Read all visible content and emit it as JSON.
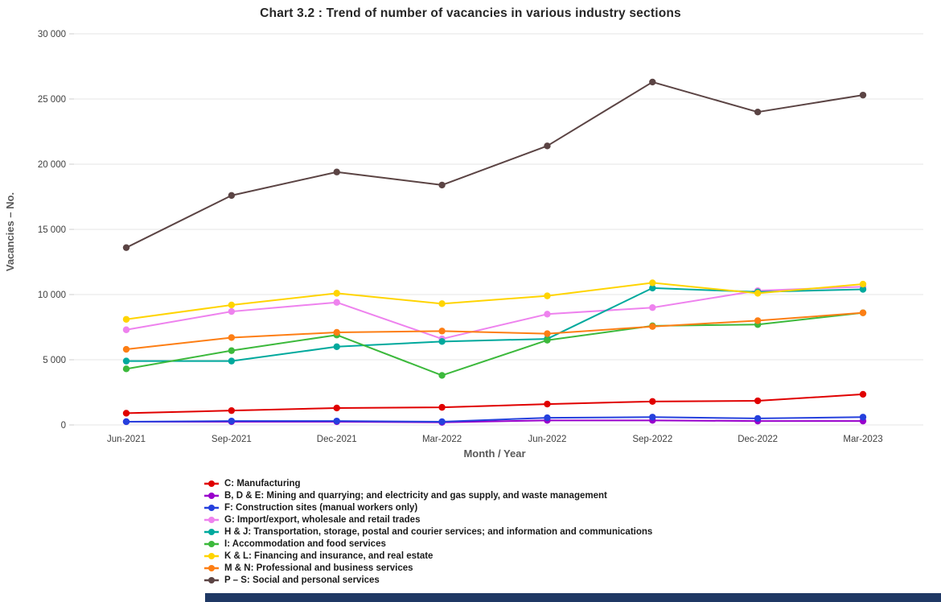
{
  "page": {
    "title": "Chart 3.2 : Trend of number of vacancies in various industry sections"
  },
  "chart_data": {
    "type": "line",
    "title": "Chart 3.2 : Trend of number of vacancies in various industry sections",
    "xlabel": "Month / Year",
    "ylabel": "Vacancies – No.",
    "ylim": [
      0,
      30000
    ],
    "y_ticks": [
      0,
      5000,
      10000,
      15000,
      20000,
      25000,
      30000
    ],
    "y_tick_labels": [
      "0",
      "5 000",
      "10 000",
      "15 000",
      "20 000",
      "25 000",
      "30 000"
    ],
    "grid": "horizontal",
    "legend_position": "bottom-left",
    "categories": [
      "Jun-2021",
      "Sep-2021",
      "Dec-2021",
      "Mar-2022",
      "Jun-2022",
      "Sep-2022",
      "Dec-2022",
      "Mar-2023"
    ],
    "series": [
      {
        "name": "C: Manufacturing",
        "color": "#e00000",
        "values": [
          900,
          1100,
          1300,
          1350,
          1600,
          1800,
          1850,
          2350
        ]
      },
      {
        "name": "B, D & E: Mining and quarrying; and electricity and gas supply, and waste management",
        "color": "#9900cc",
        "values": [
          250,
          250,
          250,
          200,
          350,
          350,
          300,
          300
        ]
      },
      {
        "name": "F: Construction sites (manual workers only)",
        "color": "#2540dd",
        "values": [
          250,
          300,
          300,
          250,
          550,
          600,
          500,
          600
        ]
      },
      {
        "name": "G: Import/export, wholesale and retail trades",
        "color": "#ee82ee",
        "values": [
          7300,
          8700,
          9400,
          6600,
          8500,
          9000,
          10300,
          10600
        ]
      },
      {
        "name": "H & J: Transportation, storage, postal and courier services; and information and communications",
        "color": "#00a99d",
        "values": [
          4900,
          4900,
          6000,
          6400,
          6600,
          10500,
          10200,
          10400
        ]
      },
      {
        "name": "I: Accommodation and food services",
        "color": "#3cb93c",
        "values": [
          4300,
          5700,
          6900,
          3800,
          6500,
          7600,
          7700,
          8600
        ]
      },
      {
        "name": "K & L: Financing and insurance, and real estate",
        "color": "#ffd400",
        "values": [
          8100,
          9200,
          10100,
          9300,
          9900,
          10900,
          10100,
          10800
        ]
      },
      {
        "name": "M & N: Professional and business services",
        "color": "#fd7e14",
        "values": [
          5800,
          6700,
          7100,
          7200,
          7000,
          7550,
          8000,
          8600
        ]
      },
      {
        "name": "P – S: Social and personal services",
        "color": "#5b4444",
        "values": [
          13600,
          17600,
          19400,
          18400,
          21400,
          26300,
          24000,
          25300
        ]
      }
    ]
  },
  "footer": {
    "bar_color": "#1f3864"
  }
}
